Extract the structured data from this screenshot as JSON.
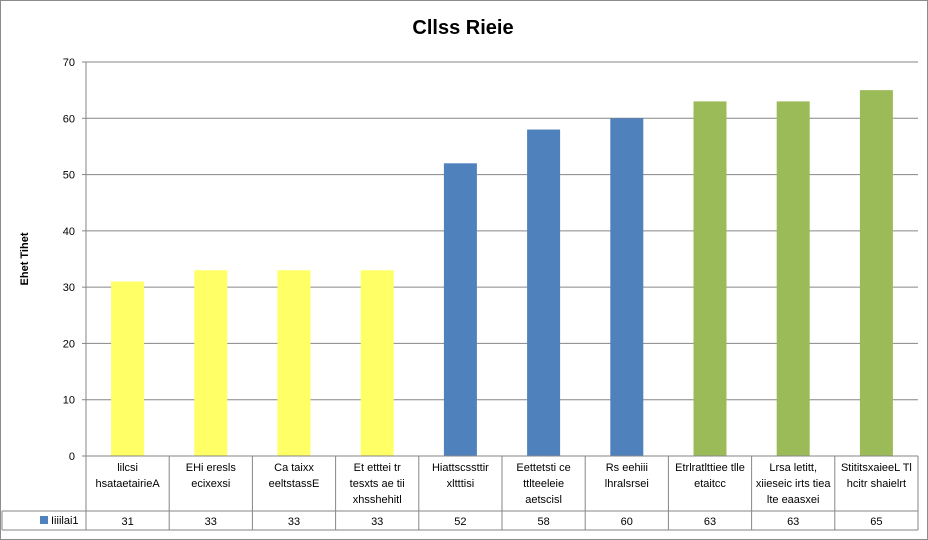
{
  "chart_data": {
    "type": "bar",
    "title": "Cllss Rieie",
    "xlabel": "",
    "ylabel": "Ehet Tihet",
    "ylim": [
      0,
      70
    ],
    "yticks": [
      0,
      10,
      20,
      30,
      40,
      50,
      60,
      70
    ],
    "grid": true,
    "legend": "data-table",
    "categories": [
      [
        "lilcsi",
        "hsataetairieA"
      ],
      [
        "EHi eresls",
        "ecixexsi"
      ],
      [
        "Ca taixx",
        "eeltstassE"
      ],
      [
        "Et etttei tr",
        "tesxts ae tii",
        "xhsshehitl"
      ],
      [
        "Hiattscssttir",
        "xltttisi"
      ],
      [
        "Eettetsti ce",
        "ttlteeleie",
        "aetscisl"
      ],
      [
        "Rs eehiii",
        "lhralsrsei"
      ],
      [
        "Etrlratlttiee tlle",
        "etaitcc"
      ],
      [
        "Lrsa letitt,",
        "xiieseic irts tiea",
        "lte eaasxei"
      ],
      [
        "StititsxaieeL Tl",
        "hcitr shaielrt"
      ]
    ],
    "series": [
      {
        "name": "Iiiilai1",
        "color": "#4f81bd",
        "values": [
          31,
          33,
          33,
          33,
          52,
          58,
          60,
          63,
          63,
          65
        ],
        "bar_colors": [
          "#ffff66",
          "#ffff66",
          "#ffff66",
          "#ffff66",
          "#4f81bd",
          "#4f81bd",
          "#4f81bd",
          "#9bbb59",
          "#9bbb59",
          "#9bbb59"
        ]
      }
    ]
  }
}
